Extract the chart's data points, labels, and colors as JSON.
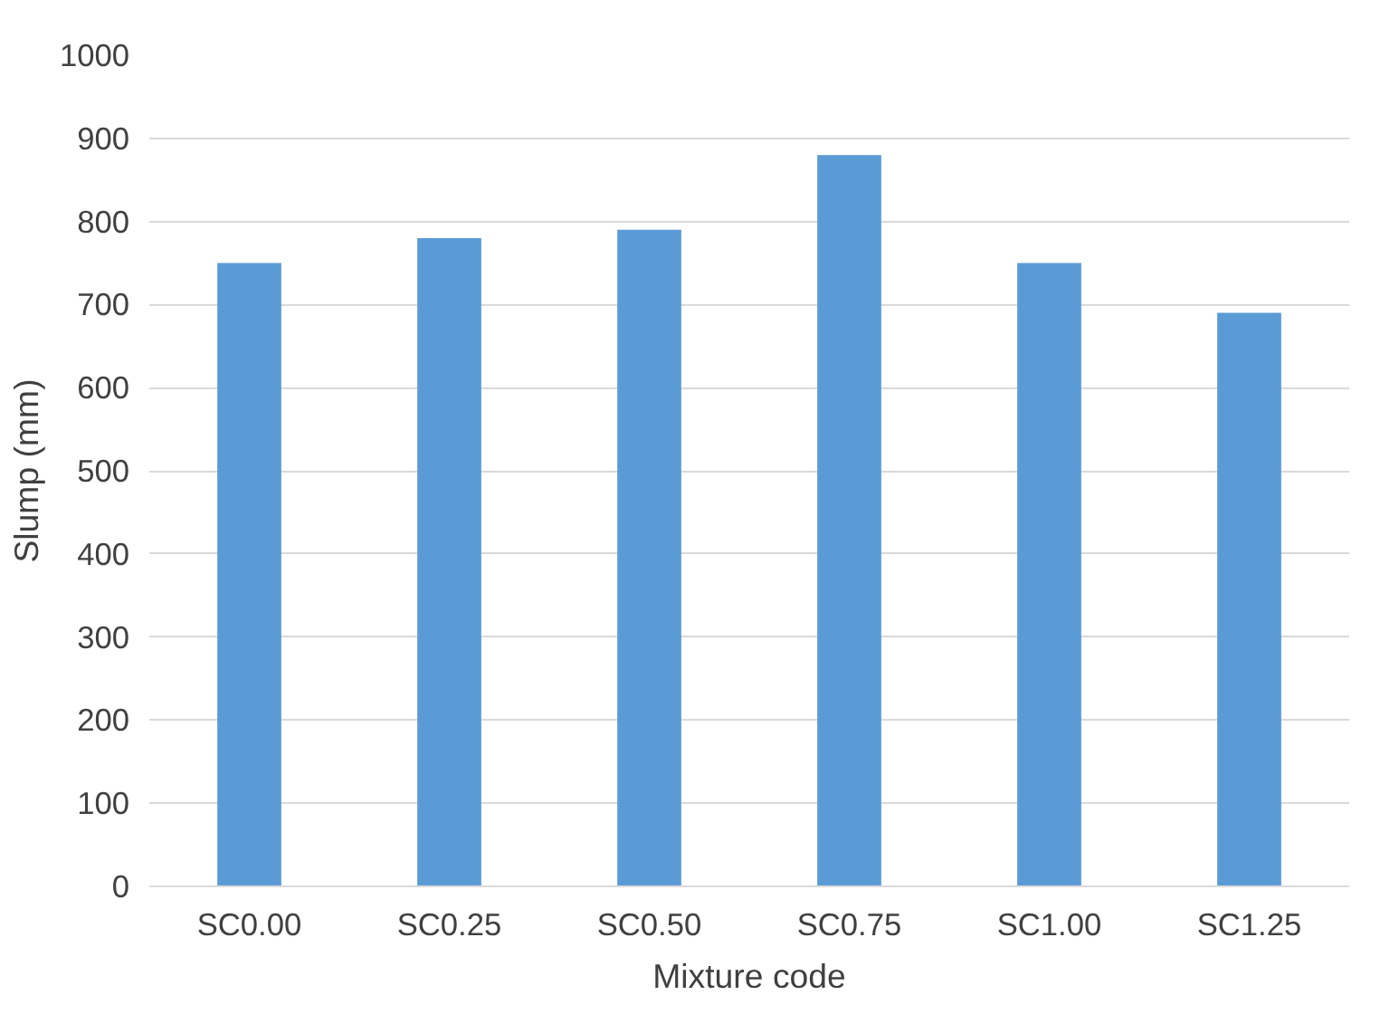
{
  "chart_data": {
    "type": "bar",
    "xlabel": "Mixture code",
    "ylabel": "Slump (mm)",
    "categories": [
      "SC0.00",
      "SC0.25",
      "SC0.50",
      "SC0.75",
      "SC1.00",
      "SC1.25"
    ],
    "values": [
      750,
      780,
      790,
      880,
      750,
      690
    ],
    "color": "#5b9bd5",
    "ylim": [
      0,
      1000
    ],
    "yticks": [
      0,
      100,
      200,
      300,
      400,
      500,
      600,
      700,
      800,
      900,
      1000
    ],
    "grid": "y"
  }
}
